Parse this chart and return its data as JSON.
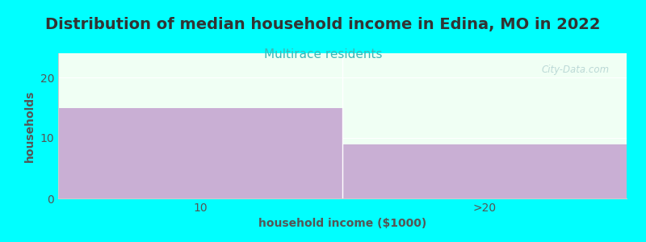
{
  "title": "Distribution of median household income in Edina, MO in 2022",
  "subtitle": "Multirace residents",
  "xlabel": "household income ($1000)",
  "ylabel": "households",
  "background_color": "#00ffff",
  "plot_bg_color": "#f0fff4",
  "bar_color": "#c9afd4",
  "categories": [
    "10",
    ">20"
  ],
  "values": [
    15,
    9
  ],
  "ylim": [
    0,
    24
  ],
  "yticks": [
    0,
    10,
    20
  ],
  "title_fontsize": 14,
  "subtitle_fontsize": 11,
  "subtitle_color": "#3ab8b8",
  "axis_label_fontsize": 10,
  "tick_fontsize": 10,
  "watermark_text": "City-Data.com",
  "title_color": "#333333",
  "tick_color": "#555555",
  "label_color": "#555555"
}
